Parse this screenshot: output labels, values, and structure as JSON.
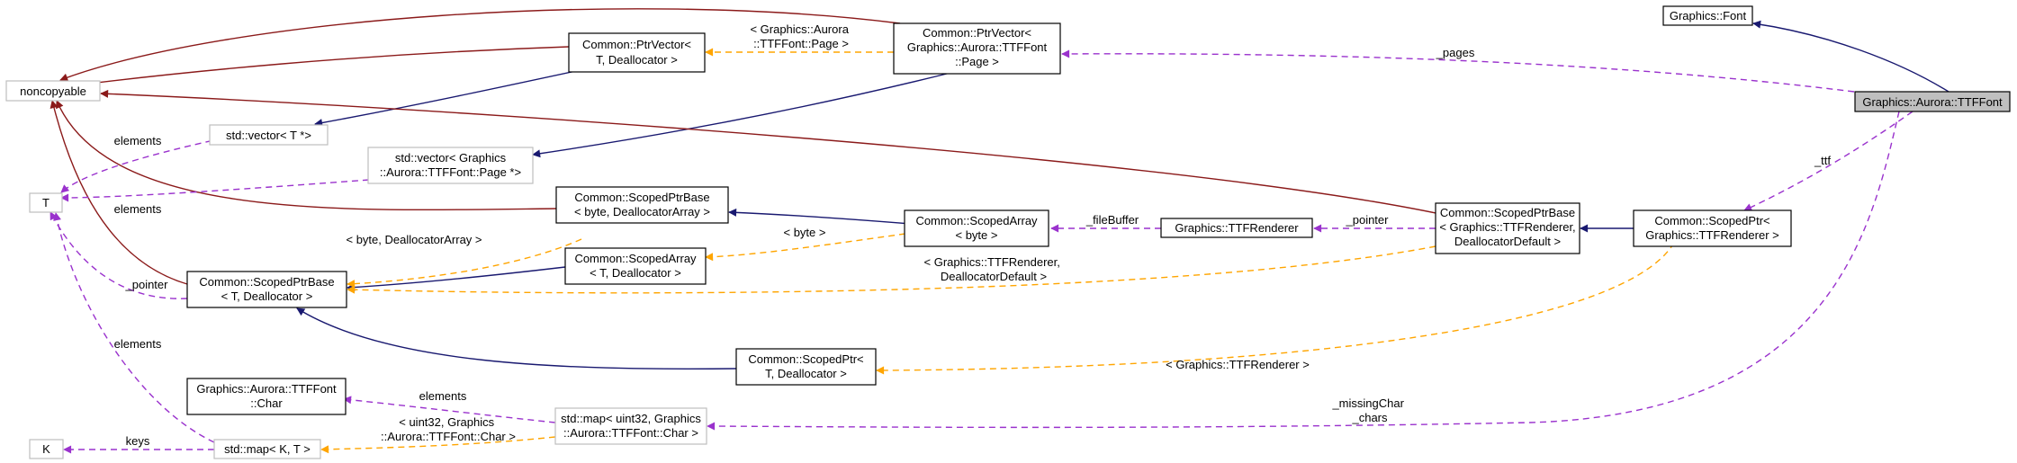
{
  "nodes": [
    {
      "id": "font",
      "lines": [
        "Graphics::Font"
      ],
      "style": "normal"
    },
    {
      "id": "ttffont",
      "lines": [
        "Graphics::Aurora::TTFFont"
      ],
      "style": "focus"
    },
    {
      "id": "noncopyable",
      "lines": [
        "noncopyable"
      ],
      "style": "gray"
    },
    {
      "id": "ptrvector_t",
      "lines": [
        "Common::PtrVector<",
        "T, Deallocator >"
      ],
      "style": "normal"
    },
    {
      "id": "ptrvector_page",
      "lines": [
        "Common::PtrVector<",
        "Graphics::Aurora::TTFFont",
        "::Page >"
      ],
      "style": "normal"
    },
    {
      "id": "vector_t",
      "lines": [
        "std::vector< T *>"
      ],
      "style": "gray"
    },
    {
      "id": "vector_page",
      "lines": [
        "std::vector< Graphics",
        "::Aurora::TTFFont::Page *>"
      ],
      "style": "gray"
    },
    {
      "id": "T",
      "lines": [
        "T"
      ],
      "style": "gray"
    },
    {
      "id": "scopedptrbase_byte",
      "lines": [
        "Common::ScopedPtrBase",
        "< byte, DeallocatorArray >"
      ],
      "style": "normal"
    },
    {
      "id": "scopedarray_byte",
      "lines": [
        "Common::ScopedArray",
        "< byte >"
      ],
      "style": "normal"
    },
    {
      "id": "ttfrenderer",
      "lines": [
        "Graphics::TTFRenderer"
      ],
      "style": "normal"
    },
    {
      "id": "scopedptrbase_ttf",
      "lines": [
        "Common::ScopedPtrBase",
        "< Graphics::TTFRenderer,",
        "DeallocatorDefault >"
      ],
      "style": "normal"
    },
    {
      "id": "scopedptr_ttf",
      "lines": [
        "Common::ScopedPtr<",
        "Graphics::TTFRenderer >"
      ],
      "style": "normal"
    },
    {
      "id": "scopedarray_t",
      "lines": [
        "Common::ScopedArray",
        "< T, Deallocator >"
      ],
      "style": "normal"
    },
    {
      "id": "scopedptrbase_t",
      "lines": [
        "Common::ScopedPtrBase",
        "< T, Deallocator >"
      ],
      "style": "normal"
    },
    {
      "id": "scopedptr_t",
      "lines": [
        "Common::ScopedPtr<",
        "T, Deallocator >"
      ],
      "style": "normal"
    },
    {
      "id": "char",
      "lines": [
        "Graphics::Aurora::TTFFont",
        "::Char"
      ],
      "style": "normal"
    },
    {
      "id": "map_char",
      "lines": [
        "std::map< uint32, Graphics",
        "::Aurora::TTFFont::Char >"
      ],
      "style": "gray"
    },
    {
      "id": "K",
      "lines": [
        "K"
      ],
      "style": "gray"
    },
    {
      "id": "map_kt",
      "lines": [
        "std::map< K, T >"
      ],
      "style": "gray"
    }
  ],
  "edge_labels": {
    "pages": "_pages",
    "ptrvector_templ": [
      "< Graphics::Aurora",
      "::TTFFont::Page >"
    ],
    "ttf": "_ttf",
    "elements_vector_t": "elements",
    "elements_vector_page": "elements",
    "byte_deallocarray": "< byte, DeallocatorArray >",
    "byte": "< byte >",
    "filebuffer": "_fileBuffer",
    "pointer_ttf": "_pointer",
    "pointer_t": "_pointer",
    "ttf_templ": [
      "< Graphics::TTFRenderer,",
      "DeallocatorDefault >"
    ],
    "ttfrenderer_templ": "< Graphics::TTFRenderer >",
    "elements_map_kt": "elements",
    "elements_map_char": "elements",
    "missingchar": [
      "_missingChar",
      "_chars"
    ],
    "uint32_templ": [
      "< uint32, Graphics",
      "::Aurora::TTFFont::Char >"
    ],
    "keys": "keys"
  },
  "colors": {
    "inheritance": "#191970",
    "private_inheritance": "#8b1a1a",
    "usage": "#9a32cd",
    "template": "#ffa500",
    "focus_fill": "#bfbfbf"
  }
}
